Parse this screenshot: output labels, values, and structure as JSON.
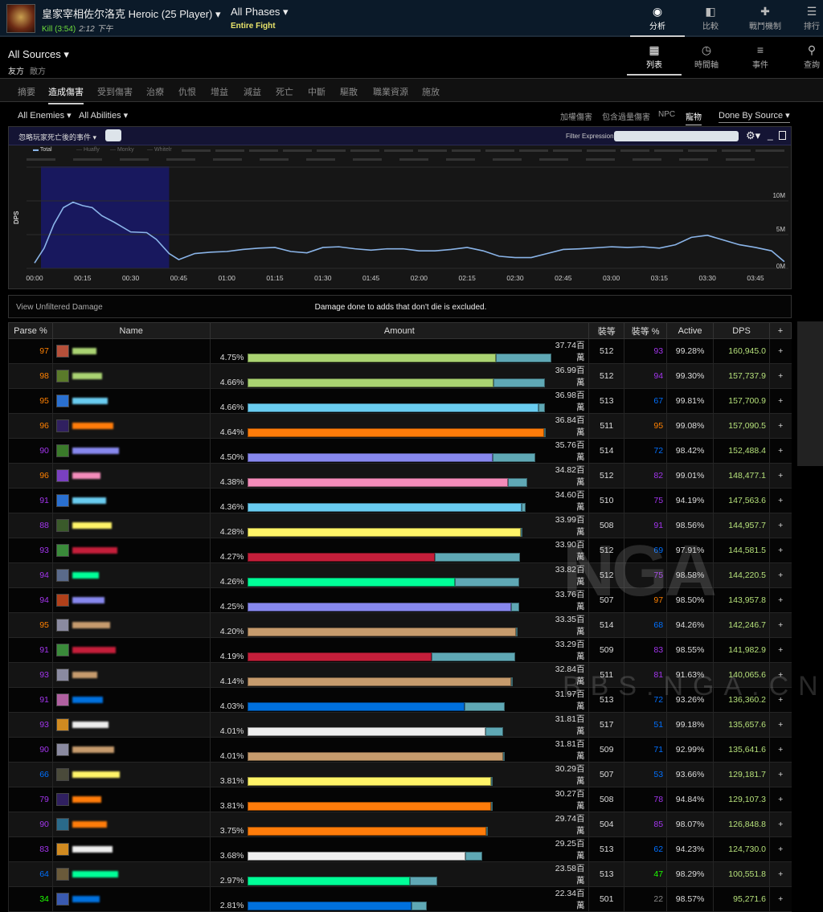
{
  "header": {
    "title": "皇家宰相佐尔洛克 Heroic (25 Player)",
    "kill": "Kill (3:54)",
    "time": "2:12 下午",
    "phase": "All Phases",
    "phase_sub": "Entire Fight",
    "nav": [
      {
        "label": "分析",
        "icon": "eye-icon"
      },
      {
        "label": "比較",
        "icon": "compare-icon"
      },
      {
        "label": "戰鬥機制",
        "icon": "puzzle-icon"
      },
      {
        "label": "排行",
        "icon": "ranking-icon"
      }
    ]
  },
  "sub": {
    "source": "All Sources",
    "friendly": "友方",
    "enemy": "敵方",
    "views": [
      {
        "label": "列表",
        "icon": "grid-icon"
      },
      {
        "label": "時間軸",
        "icon": "clock-icon"
      },
      {
        "label": "事件",
        "icon": "list-icon"
      },
      {
        "label": "查詢",
        "icon": "pin-icon"
      }
    ]
  },
  "tabs": [
    "摘要",
    "造成傷害",
    "受到傷害",
    "治療",
    "仇恨",
    "增益",
    "減益",
    "死亡",
    "中斷",
    "驅散",
    "職業資源",
    "施放"
  ],
  "filters": {
    "enemies": "All Enemies",
    "abilities": "All Abilities",
    "right": [
      "加權傷害",
      "包含過量傷害",
      "NPC",
      "寵物"
    ],
    "done_by": "Done By Source"
  },
  "chart_panel": {
    "ignore_label": "忽略玩家死亡後的事件",
    "filter_label": "Filter Expression:",
    "legend": [
      "Total",
      "Huafly",
      "Monky",
      "Whitelr"
    ]
  },
  "chart_data": {
    "type": "line",
    "ylabel": "DPS",
    "ylim": [
      0,
      15000000
    ],
    "yticks": [
      "0M",
      "5M",
      "10M"
    ],
    "xticks": [
      "00:00",
      "00:15",
      "00:30",
      "00:45",
      "01:00",
      "01:15",
      "01:30",
      "01:45",
      "02:00",
      "02:15",
      "02:30",
      "02:45",
      "03:00",
      "03:15",
      "03:30",
      "03:45"
    ],
    "selected_range": [
      "00:02",
      "00:42"
    ],
    "line_color": "#8ab4e8",
    "series": [
      {
        "name": "Total",
        "x": [
          0,
          3,
          6,
          9,
          12,
          15,
          18,
          21,
          25,
          30,
          35,
          38,
          42,
          45,
          50,
          55,
          60,
          65,
          70,
          75,
          80,
          85,
          90,
          95,
          100,
          105,
          110,
          115,
          120,
          125,
          130,
          135,
          140,
          145,
          150,
          155,
          160,
          165,
          170,
          180,
          185,
          190,
          195,
          200,
          205,
          210,
          215,
          220,
          225,
          230,
          234
        ],
        "y": [
          0.8,
          3,
          6.5,
          9,
          9.8,
          9.3,
          9.0,
          7.8,
          6.8,
          5.4,
          5.3,
          4.3,
          2.2,
          1.3,
          2.2,
          2.4,
          2.5,
          2.8,
          3.0,
          3.1,
          2.5,
          2.3,
          3.1,
          3.2,
          2.9,
          2.7,
          2.9,
          2.9,
          2.6,
          2.6,
          2.8,
          3.1,
          2.6,
          1.8,
          1.6,
          1.6,
          2.2,
          2.8,
          2.9,
          3.2,
          3.1,
          3.2,
          3.0,
          3.5,
          4.6,
          4.9,
          4.2,
          3.5,
          3.1,
          2.6,
          1.0
        ],
        "y_unit": "M"
      }
    ]
  },
  "info": {
    "link": "View Unfiltered Damage",
    "note": "Damage done to adds that don't die is excluded."
  },
  "table": {
    "headers": [
      "Parse %",
      "Name",
      "Amount",
      "裝等",
      "裝等 %",
      "Active",
      "DPS",
      "+"
    ],
    "rows": [
      {
        "parse": "97",
        "pct": "4.75%",
        "amount": "37.74百萬",
        "total": 37.74,
        "main": 0.818,
        "color": "#aad372",
        "ilvl": "512",
        "ilvlp": "93",
        "active": "99.28%",
        "dps": "160,945.0",
        "icon": "#b5503a"
      },
      {
        "parse": "98",
        "pct": "4.66%",
        "amount": "36.99百萬",
        "total": 36.99,
        "main": 0.828,
        "color": "#aad372",
        "ilvl": "512",
        "ilvlp": "94",
        "active": "99.30%",
        "dps": "157,737.9",
        "icon": "#5a7a2a"
      },
      {
        "parse": "95",
        "pct": "4.66%",
        "amount": "36.98百萬",
        "total": 36.98,
        "main": 0.98,
        "color": "#69ccf0",
        "ilvl": "513",
        "ilvlp": "67",
        "active": "99.81%",
        "dps": "157,700.9",
        "icon": "#2a70d0"
      },
      {
        "parse": "96",
        "pct": "4.64%",
        "amount": "36.84百萬",
        "total": 36.84,
        "main": 1,
        "color": "#ff7c0a",
        "ilvl": "511",
        "ilvlp": "95",
        "active": "99.08%",
        "dps": "157,090.5",
        "icon": "#302060"
      },
      {
        "parse": "90",
        "pct": "4.50%",
        "amount": "35.76百萬",
        "total": 35.76,
        "main": 0.854,
        "color": "#8788ee",
        "ilvl": "514",
        "ilvlp": "72",
        "active": "98.42%",
        "dps": "152,488.4",
        "icon": "#3a7a2a"
      },
      {
        "parse": "96",
        "pct": "4.38%",
        "amount": "34.82百萬",
        "total": 34.82,
        "main": 0.93,
        "color": "#f48cba",
        "ilvl": "512",
        "ilvlp": "82",
        "active": "99.01%",
        "dps": "148,477.1",
        "icon": "#7a40c0"
      },
      {
        "parse": "91",
        "pct": "4.36%",
        "amount": "34.60百萬",
        "total": 34.6,
        "main": 0.984,
        "color": "#69ccf0",
        "ilvl": "510",
        "ilvlp": "75",
        "active": "94.19%",
        "dps": "147,563.6",
        "icon": "#2a70d0"
      },
      {
        "parse": "88",
        "pct": "4.28%",
        "amount": "33.99百萬",
        "total": 33.99,
        "main": 1,
        "color": "#fff468",
        "ilvl": "508",
        "ilvlp": "91",
        "active": "98.56%",
        "dps": "144,957.7",
        "icon": "#3a5a2a"
      },
      {
        "parse": "93",
        "pct": "4.27%",
        "amount": "33.90百萬",
        "total": 33.9,
        "main": 0.689,
        "color": "#c41e3a",
        "ilvl": "512",
        "ilvlp": "69",
        "active": "97.91%",
        "dps": "144,581.5",
        "icon": "#3a8a3a"
      },
      {
        "parse": "94",
        "pct": "4.26%",
        "amount": "33.82百萬",
        "total": 33.82,
        "main": 0.764,
        "color": "#00ff98",
        "ilvl": "512",
        "ilvlp": "75",
        "active": "98.58%",
        "dps": "144,220.5",
        "icon": "#5a6a8a"
      },
      {
        "parse": "94",
        "pct": "4.25%",
        "amount": "33.76百萬",
        "total": 33.76,
        "main": 0.972,
        "color": "#8788ee",
        "ilvl": "507",
        "ilvlp": "97",
        "active": "98.50%",
        "dps": "143,957.8",
        "icon": "#b0401a"
      },
      {
        "parse": "95",
        "pct": "4.20%",
        "amount": "33.35百萬",
        "total": 33.35,
        "main": 1,
        "color": "#c69b6d",
        "ilvl": "514",
        "ilvlp": "68",
        "active": "94.26%",
        "dps": "142,246.7",
        "icon": "#8a8aa0"
      },
      {
        "parse": "91",
        "pct": "4.19%",
        "amount": "33.29百萬",
        "total": 33.29,
        "main": 0.688,
        "color": "#c41e3a",
        "ilvl": "509",
        "ilvlp": "83",
        "active": "98.55%",
        "dps": "141,982.9",
        "icon": "#3a8a3a"
      },
      {
        "parse": "93",
        "pct": "4.14%",
        "amount": "32.84百萬",
        "total": 32.84,
        "main": 1,
        "color": "#c69b6d",
        "ilvl": "511",
        "ilvlp": "81",
        "active": "91.63%",
        "dps": "140,065.6",
        "icon": "#8a8aa0"
      },
      {
        "parse": "91",
        "pct": "4.03%",
        "amount": "31.97百萬",
        "total": 31.97,
        "main": 0.845,
        "color": "#0070dd",
        "ilvl": "513",
        "ilvlp": "72",
        "active": "93.26%",
        "dps": "136,360.2",
        "icon": "#b060a0"
      },
      {
        "parse": "93",
        "pct": "4.01%",
        "amount": "31.81百萬",
        "total": 31.81,
        "main": 0.93,
        "color": "#eeeeee",
        "ilvl": "517",
        "ilvlp": "51",
        "active": "99.18%",
        "dps": "135,657.6",
        "icon": "#d08a20"
      },
      {
        "parse": "90",
        "pct": "4.01%",
        "amount": "31.81百萬",
        "total": 31.81,
        "main": 1,
        "color": "#c69b6d",
        "ilvl": "509",
        "ilvlp": "71",
        "active": "92.99%",
        "dps": "135,641.6",
        "icon": "#8a8aa0"
      },
      {
        "parse": "66",
        "pct": "3.81%",
        "amount": "30.29百萬",
        "total": 30.29,
        "main": 1,
        "color": "#fff468",
        "ilvl": "507",
        "ilvlp": "53",
        "active": "93.66%",
        "dps": "129,181.7",
        "icon": "#4a4a3a"
      },
      {
        "parse": "79",
        "pct": "3.81%",
        "amount": "30.27百萬",
        "total": 30.27,
        "main": 1,
        "color": "#ff7c0a",
        "ilvl": "508",
        "ilvlp": "78",
        "active": "94.84%",
        "dps": "129,107.3",
        "icon": "#302060"
      },
      {
        "parse": "90",
        "pct": "3.75%",
        "amount": "29.74百萬",
        "total": 29.74,
        "main": 1,
        "color": "#ff7c0a",
        "ilvl": "504",
        "ilvlp": "85",
        "active": "98.07%",
        "dps": "126,848.8",
        "icon": "#2a6a8a"
      },
      {
        "parse": "83",
        "pct": "3.68%",
        "amount": "29.25百萬",
        "total": 29.25,
        "main": 0.927,
        "color": "#eeeeee",
        "ilvl": "513",
        "ilvlp": "62",
        "active": "94.23%",
        "dps": "124,730.0",
        "icon": "#d08a20"
      },
      {
        "parse": "64",
        "pct": "2.97%",
        "amount": "23.58百萬",
        "total": 23.58,
        "main": 0.856,
        "color": "#00ff98",
        "ilvl": "513",
        "ilvlp": "47",
        "active": "98.29%",
        "dps": "100,551.8",
        "icon": "#6a5a3a"
      },
      {
        "parse": "34",
        "pct": "2.81%",
        "amount": "22.34百萬",
        "total": 22.34,
        "main": 0.916,
        "color": "#0070dd",
        "ilvl": "501",
        "ilvlp": "22",
        "active": "98.57%",
        "dps": "95,271.6",
        "icon": "#3a5ab0"
      }
    ]
  },
  "colors": {
    "secondary_segment": "#5fa8b5",
    "dps": "#b5e07a",
    "legendary": "#ff8000",
    "epic": "#a335ee",
    "rare": "#0070ff",
    "uncommon": "#1eff00",
    "common": "#888888"
  },
  "watermark": {
    "logo": "NGA",
    "site": "BBS.NGA.CN"
  }
}
